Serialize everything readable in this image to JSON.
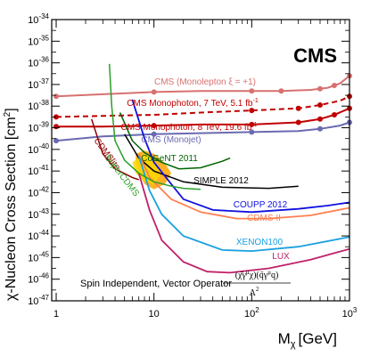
{
  "chart_data": {
    "type": "line",
    "title": "CMS",
    "xlabel": "M",
    "xlabel_sub": "χ",
    "xlabel_units": "[GeV]",
    "ylabel": "χ-Nucleon Cross Section [cm",
    "ylabel_sup": "2",
    "ylabel_end": "]",
    "xscale": "log",
    "yscale": "log",
    "xlim": [
      0.9,
      1000
    ],
    "ylim": [
      1e-47,
      1e-34
    ],
    "x_ticks": [
      {
        "v": 1,
        "label": "1"
      },
      {
        "v": 10,
        "label": "10"
      },
      {
        "v": 100,
        "label": "10",
        "sup": "2"
      },
      {
        "v": 1000,
        "label": "10",
        "sup": "3"
      }
    ],
    "y_ticks": [
      -47,
      -46,
      -45,
      -44,
      -43,
      -42,
      -41,
      -40,
      -39,
      -38,
      -37,
      -36,
      -35,
      -34
    ],
    "y_tick_base": "10",
    "operator_text": "Spin Independent, Vector Operator",
    "operator_numerator": "(χ̄γ",
    "operator_numerator_mu": "μ",
    "operator_numerator_mid": "χ)(q̄γ",
    "operator_numerator_mu2": "μ",
    "operator_numerator_end": "q)",
    "operator_denominator": "Λ",
    "operator_denominator_sup": "2",
    "series": [
      {
        "name": "CMS (Monolepton ξ = +1)",
        "color": "#d87070",
        "width": 2,
        "dash": false,
        "markers": true,
        "points": [
          [
            1,
            -37.55
          ],
          [
            3,
            -37.45
          ],
          [
            10,
            -37.35
          ],
          [
            30,
            -37.3
          ],
          [
            100,
            -37.3
          ],
          [
            200,
            -37.3
          ],
          [
            400,
            -37.25
          ],
          [
            600,
            -37.15
          ],
          [
            800,
            -36.95
          ],
          [
            1000,
            -36.6
          ]
        ],
        "marker_x": [
          1,
          10,
          100,
          200,
          500,
          700,
          1000
        ],
        "label_pos": [
          230,
          95
        ],
        "label_text": "CMS (Monolepton ξ = +1)"
      },
      {
        "name": "CMS Monophoton, 7 TeV, 5.1 fb",
        "color": "#c00000",
        "width": 2,
        "dash": true,
        "markers": true,
        "points": [
          [
            1,
            -38.5
          ],
          [
            3,
            -38.45
          ],
          [
            10,
            -38.4
          ],
          [
            30,
            -38.3
          ],
          [
            100,
            -38.2
          ],
          [
            300,
            -38.1
          ],
          [
            500,
            -37.95
          ],
          [
            800,
            -37.75
          ],
          [
            1000,
            -37.55
          ]
        ],
        "marker_x": [
          1,
          100,
          300,
          500,
          1000
        ],
        "label_pos": [
          216,
          119
        ],
        "label_text": "CMS Monophoton, 7 TeV, 5.1 fb",
        "label_sup": "-1"
      },
      {
        "name": "CMS Monophoton, 8 TeV, 19.6 fb",
        "color": "#c00000",
        "width": 2,
        "dash": false,
        "markers": true,
        "points": [
          [
            1,
            -38.95
          ],
          [
            3,
            -38.95
          ],
          [
            10,
            -38.9
          ],
          [
            30,
            -38.85
          ],
          [
            100,
            -38.85
          ],
          [
            300,
            -38.75
          ],
          [
            500,
            -38.6
          ],
          [
            700,
            -38.4
          ],
          [
            1000,
            -38.1
          ]
        ],
        "marker_x": [
          1,
          10,
          100,
          300,
          500,
          700,
          1000
        ],
        "label_pos": [
          212,
          146
        ],
        "label_text": "CMS Monophoton, 8 TeV, 19.6 fb",
        "label_sup": "-1"
      },
      {
        "name": "CMS (Monojet)",
        "color": "#6a6ab0",
        "width": 2,
        "dash": false,
        "markers": true,
        "points": [
          [
            1,
            -39.6
          ],
          [
            3,
            -39.4
          ],
          [
            10,
            -39.3
          ],
          [
            30,
            -39.25
          ],
          [
            100,
            -39.2
          ],
          [
            300,
            -39.15
          ],
          [
            500,
            -39.05
          ],
          [
            800,
            -38.9
          ],
          [
            1000,
            -38.75
          ]
        ],
        "marker_x": [
          1,
          10,
          100,
          500,
          1000
        ],
        "label_pos": [
          192,
          160
        ],
        "label_text": "CMS (Monojet)"
      },
      {
        "name": "CoGeNT 2011",
        "color": "#006400",
        "width": 1.5,
        "dash": false,
        "markers": false,
        "points": [
          [
            4.5,
            -38.3
          ],
          [
            6,
            -39.6
          ],
          [
            8,
            -40.15
          ],
          [
            12,
            -40.6
          ],
          [
            18,
            -40.9
          ],
          [
            30,
            -40.85
          ],
          [
            50,
            -40.55
          ],
          [
            60,
            -40.4
          ]
        ],
        "label_pos": [
          190,
          181
        ],
        "label_text": "CoGeNT 2011"
      },
      {
        "name": "SIMPLE 2012",
        "color": "#000000",
        "width": 1.5,
        "dash": false,
        "markers": false,
        "points": [
          [
            5,
            -39.3
          ],
          [
            7,
            -40.4
          ],
          [
            10,
            -41.0
          ],
          [
            20,
            -41.5
          ],
          [
            50,
            -41.75
          ],
          [
            150,
            -41.8
          ],
          [
            300,
            -41.7
          ]
        ],
        "label_pos": [
          248,
          206
        ],
        "label_text": "SIMPLE 2012"
      },
      {
        "name": "COUPP 2012",
        "color": "#1010e0",
        "width": 1.8,
        "dash": false,
        "markers": false,
        "points": [
          [
            6,
            -37.7
          ],
          [
            8,
            -39.5
          ],
          [
            10,
            -40.6
          ],
          [
            15,
            -41.6
          ],
          [
            20,
            -42.3
          ],
          [
            40,
            -42.8
          ],
          [
            100,
            -42.9
          ],
          [
            300,
            -42.75
          ],
          [
            600,
            -42.6
          ],
          [
            1000,
            -42.45
          ]
        ],
        "label_pos": [
          292,
          233
        ],
        "label_text": "COUPP 2012"
      },
      {
        "name": "CDMS II",
        "color": "#ff7f50",
        "width": 1.8,
        "dash": false,
        "markers": false,
        "points": [
          [
            7,
            -40.2
          ],
          [
            9,
            -41.3
          ],
          [
            15,
            -42.3
          ],
          [
            30,
            -42.9
          ],
          [
            70,
            -43.2
          ],
          [
            150,
            -43.2
          ],
          [
            400,
            -43.05
          ],
          [
            1000,
            -42.7
          ]
        ],
        "label_pos": [
          296,
          248
        ],
        "label_text": "CDMS II"
      },
      {
        "name": "XENON100",
        "color": "#1aa0e0",
        "width": 1.8,
        "dash": false,
        "markers": false,
        "points": [
          [
            7,
            -40.3
          ],
          [
            9,
            -41.9
          ],
          [
            12,
            -43.0
          ],
          [
            20,
            -44.0
          ],
          [
            50,
            -44.65
          ],
          [
            100,
            -44.7
          ],
          [
            300,
            -44.5
          ],
          [
            1000,
            -44.05
          ]
        ],
        "label_pos": [
          291,
          275
        ],
        "label_text": "XENON100"
      },
      {
        "name": "LUX",
        "color": "#c0206a",
        "width": 1.8,
        "dash": false,
        "markers": false,
        "points": [
          [
            7,
            -41.1
          ],
          [
            9,
            -42.8
          ],
          [
            12,
            -44.2
          ],
          [
            20,
            -45.2
          ],
          [
            35,
            -45.65
          ],
          [
            60,
            -45.7
          ],
          [
            150,
            -45.5
          ],
          [
            400,
            -45.1
          ],
          [
            1000,
            -44.6
          ]
        ],
        "label_pos": [
          315,
          291
        ],
        "label_text": "LUX"
      },
      {
        "name": "CDMSlite",
        "color": "#8b0000",
        "width": 1.5,
        "dash": false,
        "markers": false,
        "points": [
          [
            2.3,
            -38.6
          ],
          [
            3,
            -40.2
          ],
          [
            4,
            -40.9
          ],
          [
            6,
            -41.3
          ],
          [
            7,
            -41.4
          ]
        ],
        "label_pos": [
          105,
          158
        ],
        "label_text": "CDMSlite",
        "label_rot": 53
      },
      {
        "name": "SuperCDMS",
        "color": "#2aa02a",
        "width": 1.5,
        "dash": false,
        "markers": false,
        "points": [
          [
            3.5,
            -36.05
          ],
          [
            3.7,
            -38.0
          ],
          [
            4,
            -39.6
          ],
          [
            5,
            -40.5
          ],
          [
            7,
            -41.1
          ],
          [
            10,
            -41.5
          ],
          [
            15,
            -41.7
          ],
          [
            20,
            -41.8
          ],
          [
            30,
            -41.85
          ]
        ],
        "label_pos": [
          117,
          177
        ],
        "label_text": "SuperCDMS",
        "label_rot": 52
      }
    ],
    "regions": [
      {
        "name": "CoGeNT signal region",
        "color": "#ffa500",
        "points": [
          [
            6.5,
            -40.2
          ],
          [
            8,
            -40.05
          ],
          [
            10,
            -40.2
          ],
          [
            13,
            -40.65
          ],
          [
            15,
            -41.1
          ],
          [
            13,
            -41.6
          ],
          [
            10,
            -41.85
          ],
          [
            8,
            -41.6
          ],
          [
            7,
            -41.1
          ],
          [
            6.5,
            -40.6
          ]
        ]
      },
      {
        "name": "CDMS Si region",
        "color": "#ffd700",
        "points": [
          [
            6,
            -40.6
          ],
          [
            8,
            -40.2
          ],
          [
            10,
            -40.5
          ],
          [
            12,
            -41.1
          ],
          [
            10,
            -41.6
          ],
          [
            8,
            -41.5
          ],
          [
            6.5,
            -41.1
          ]
        ]
      }
    ]
  }
}
